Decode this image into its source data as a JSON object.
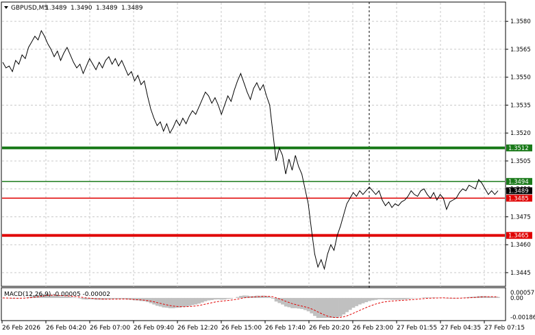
{
  "header": {
    "symbol": "GBPUSD,M5",
    "open": "1.3489",
    "high": "1.3490",
    "low": "1.3489",
    "close": "1.3489"
  },
  "price_axis": {
    "ticks": [
      "1.3580",
      "1.3565",
      "1.3550",
      "1.3535",
      "1.3520",
      "1.3505",
      "1.3490",
      "1.3475",
      "1.3460",
      "1.3445"
    ]
  },
  "levels": [
    {
      "price": 1.3512,
      "label": "1.3512",
      "color": "#1a7a1a",
      "thickness": "thick"
    },
    {
      "price": 1.3494,
      "label": "1.3494",
      "color": "#1a7a1a",
      "thickness": "thin"
    },
    {
      "price": 1.3485,
      "label": "1.3485",
      "color": "#e00000",
      "thickness": "thin"
    },
    {
      "price": 1.3465,
      "label": "1.3465",
      "color": "#e00000",
      "thickness": "thick"
    }
  ],
  "current_price": {
    "value": 1.3489,
    "label": "1.3489"
  },
  "macd": {
    "title": "MACD(12,26,9) -0.00005 -0.00002",
    "ticks": [
      "0.00057",
      "0.00",
      "-0.00186"
    ],
    "range": [
      -0.00186,
      0.00057
    ]
  },
  "time_axis": {
    "labels": [
      "26 Feb 2026",
      "26 Feb 04:20",
      "26 Feb 07:00",
      "26 Feb 09:40",
      "26 Feb 12:20",
      "26 Feb 15:00",
      "26 Feb 17:40",
      "26 Feb 20:20",
      "26 Feb 23:00",
      "27 Feb 01:55",
      "27 Feb 04:35",
      "27 Feb 07:15"
    ]
  },
  "colors": {
    "price_line": "#000000",
    "macd_histogram": "#c0c0c0",
    "macd_signal": "#e00000",
    "grid": "#c8c8c8",
    "support_resistance_green": "#1a7a1a",
    "support_resistance_red": "#e00000"
  },
  "chart_data": {
    "type": "line",
    "title": "GBPUSD,M5",
    "ylim": [
      1.3438,
      1.359
    ],
    "series": [
      {
        "values": [
          1.3558,
          1.3555,
          1.3556,
          1.3553,
          1.3559,
          1.3557,
          1.3562,
          1.356,
          1.3566,
          1.3569,
          1.3572,
          1.357,
          1.3575,
          1.3572,
          1.3568,
          1.3565,
          1.3561,
          1.3564,
          1.3559,
          1.3563,
          1.3566,
          1.3562,
          1.3558,
          1.3555,
          1.3557,
          1.3552,
          1.3556,
          1.356,
          1.3557,
          1.3554,
          1.3558,
          1.3555,
          1.3559,
          1.3561,
          1.3557,
          1.356,
          1.3556,
          1.3559,
          1.3555,
          1.3551,
          1.3553,
          1.3548,
          1.3551,
          1.3546,
          1.3548,
          1.354,
          1.3533,
          1.3528,
          1.3524,
          1.3526,
          1.3521,
          1.3525,
          1.352,
          1.3523,
          1.3527,
          1.3524,
          1.3528,
          1.3525,
          1.3529,
          1.3532,
          1.353,
          1.3534,
          1.3538,
          1.3542,
          1.354,
          1.3536,
          1.3539,
          1.3535,
          1.353,
          1.3535,
          1.354,
          1.3537,
          1.3543,
          1.3548,
          1.3552,
          1.3547,
          1.3542,
          1.3538,
          1.3544,
          1.3547,
          1.3543,
          1.3546,
          1.354,
          1.3535,
          1.352,
          1.3505,
          1.3512,
          1.3508,
          1.3498,
          1.3506,
          1.35,
          1.3508,
          1.3502,
          1.3498,
          1.349,
          1.3482,
          1.3468,
          1.3455,
          1.3448,
          1.3452,
          1.3447,
          1.3455,
          1.346,
          1.3457,
          1.3465,
          1.347,
          1.3476,
          1.3482,
          1.3485,
          1.3488,
          1.3486,
          1.3489,
          1.3487,
          1.3489,
          1.3491,
          1.3489,
          1.3487,
          1.3489,
          1.3484,
          1.3481,
          1.3483,
          1.348,
          1.3482,
          1.3481,
          1.3483,
          1.3484,
          1.3486,
          1.3489,
          1.3487,
          1.3486,
          1.3489,
          1.349,
          1.3487,
          1.3485,
          1.3488,
          1.3484,
          1.3487,
          1.3485,
          1.3479,
          1.3483,
          1.3484,
          1.3485,
          1.3488,
          1.349,
          1.3489,
          1.3492,
          1.3491,
          1.349,
          1.3495,
          1.3493,
          1.349,
          1.3487,
          1.3489,
          1.3487,
          1.3489
        ]
      }
    ]
  }
}
